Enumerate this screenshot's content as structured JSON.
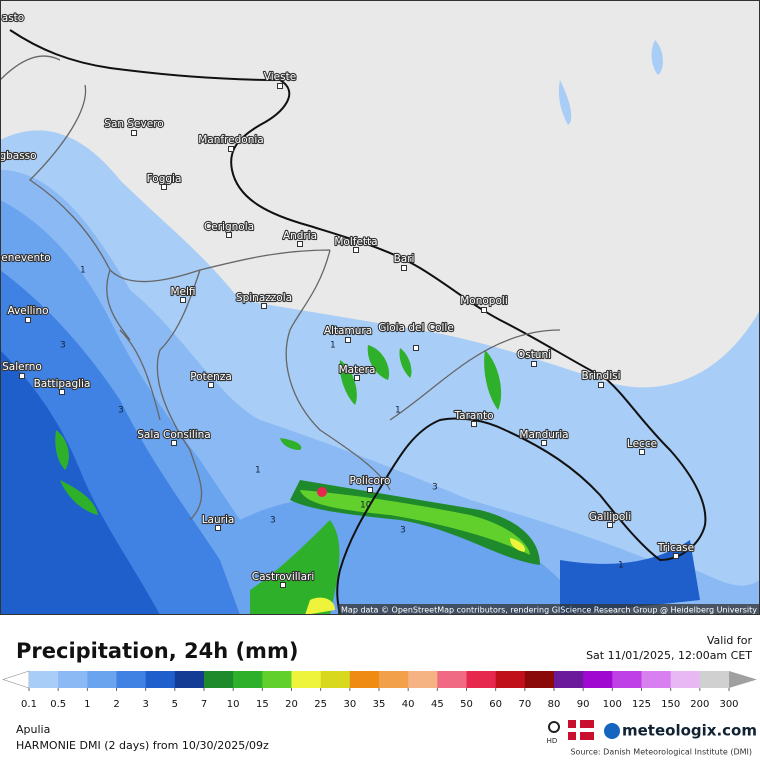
{
  "map": {
    "cities": [
      "asto",
      "Vieste",
      "San Severo",
      "Manfredonia",
      "Foggia",
      "gbasso",
      "Cerignola",
      "Andria",
      "Molfetta",
      "Bari",
      "enevento",
      "Monopoli",
      "Melfi",
      "Spinazzola",
      "Avellino",
      "Altamura",
      "Gioia del Colle",
      "Ostuni",
      "Salerno",
      "Matera",
      "Brindisi",
      "Battipaglia",
      "Potenza",
      "Taranto",
      "Manduria",
      "Sala Consilina",
      "Lecce",
      "Policoro",
      "Gallipoli",
      "Lauria",
      "Tricase",
      "Castrovillari"
    ],
    "contour_labels": [
      "1",
      "1",
      "3",
      "3",
      "1",
      "3",
      "1",
      "3",
      "10",
      "3",
      "1"
    ],
    "attribution": "Map data © OpenStreetMap contributors, rendering GIScience Research Group @ Heidelberg University"
  },
  "footer": {
    "title": "Precipitation, 24h (mm)",
    "valid_label": "Valid for",
    "valid_time": "Sat 11/01/2025, 12:00am CET",
    "legend": {
      "levels": [
        0.1,
        0.5,
        1,
        2,
        3,
        5,
        7,
        10,
        15,
        20,
        25,
        30,
        35,
        40,
        45,
        50,
        60,
        70,
        80,
        90,
        100,
        125,
        150,
        200,
        300
      ],
      "colors": [
        "#a8cdf6",
        "#8ab9f3",
        "#6aa3ee",
        "#3f82e4",
        "#1f5fcc",
        "#143c94",
        "#1f8a2b",
        "#2fb02a",
        "#62d02c",
        "#eef43c",
        "#d8d81e",
        "#ef8a12",
        "#f3a04a",
        "#f5b282",
        "#ef6a82",
        "#e6284f",
        "#c0101a",
        "#8a0a0a",
        "#6a1a9a",
        "#a00ad0",
        "#c040e8",
        "#d880f0",
        "#e8b8f4",
        "#d0d0d0"
      ],
      "below_color": "#ffffff",
      "above_color": "#a0a0a0"
    },
    "region": "Apulia",
    "model": "HARMONIE DMI (2 days) from  10/30/2025/09z",
    "hd": "HD",
    "brand": "meteologix.com",
    "source": "Source: Danish Meteorological Institute (DMI)"
  }
}
